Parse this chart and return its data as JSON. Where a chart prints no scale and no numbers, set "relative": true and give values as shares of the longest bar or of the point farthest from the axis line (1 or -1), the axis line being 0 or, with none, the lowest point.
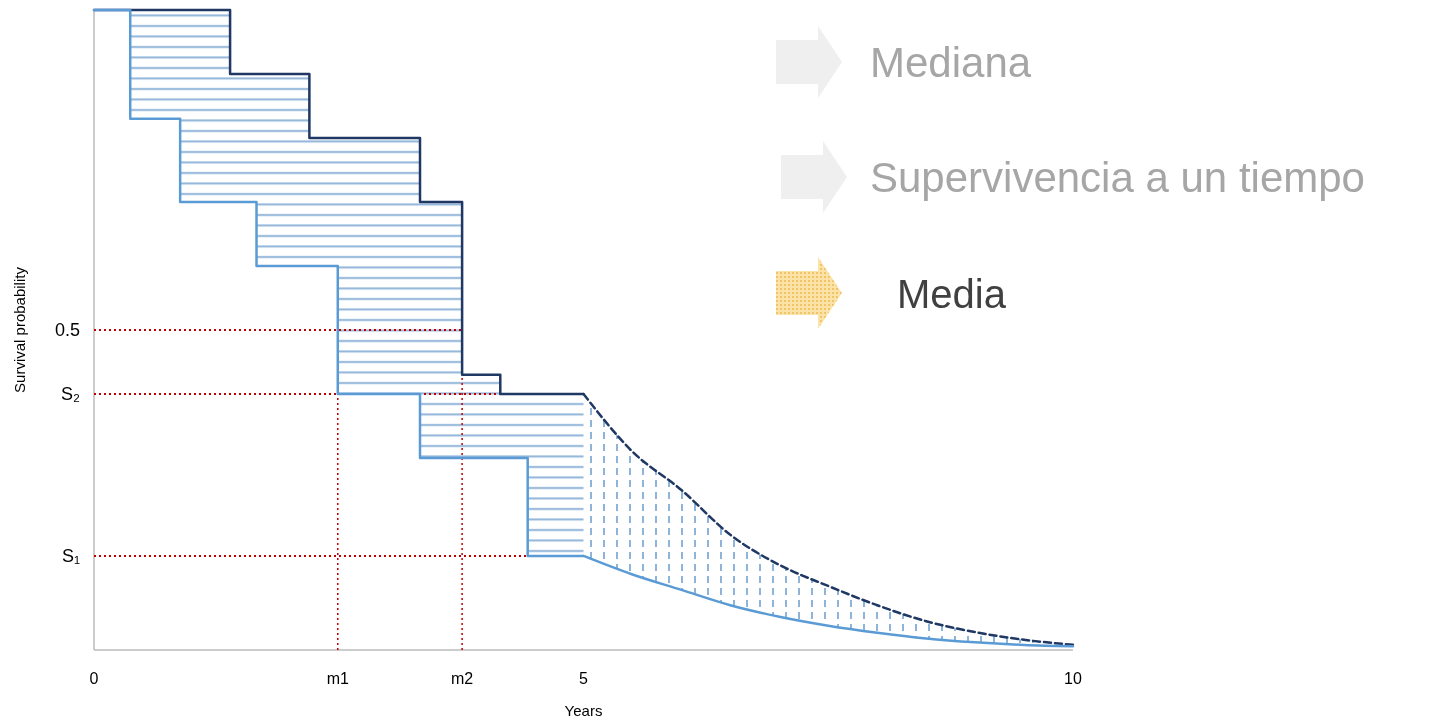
{
  "chart_data": {
    "type": "step",
    "relative": true,
    "xlabel": "Years",
    "ylabel": "Survival probability",
    "xlim": [
      0,
      10
    ],
    "xticks": [
      0,
      {
        "value": 2.49,
        "label": "m1"
      },
      {
        "value": 3.76,
        "label": "m2"
      },
      5,
      10
    ],
    "series": [
      {
        "type": "step",
        "color": "#1f3864",
        "x": [
          0,
          0.37,
          0.88,
          1.39,
          1.66,
          2.2,
          2.49,
          3.33,
          3.76,
          4.15,
          4.43,
          5
        ],
        "values": [
          1,
          1,
          1,
          0.9,
          0.9,
          0.8,
          0.8,
          0.7,
          0.43,
          0.4,
          0.4,
          0.4
        ],
        "lower": [
          1,
          0.83,
          0.7,
          0.7,
          0.6,
          0.6,
          0.4,
          0.3,
          0.3,
          0.3,
          0.147,
          0.147
        ],
        "upper": [
          1,
          1,
          1,
          0.9,
          0.9,
          0.8,
          0.8,
          0.7,
          0.43,
          0.4,
          0.4,
          0.4
        ]
      },
      {
        "type": "line",
        "color": "#1f3864",
        "line_style": "dashed",
        "x": [
          5,
          5.5,
          6,
          6.5,
          7,
          7.5,
          8,
          8.5,
          9,
          9.5,
          10
        ],
        "values": [
          0.4,
          0.31,
          0.25,
          0.18,
          0.133,
          0.1,
          0.07,
          0.045,
          0.028,
          0.016,
          0.008
        ],
        "lower": [
          0.147,
          0.118,
          0.094,
          0.07,
          0.052,
          0.038,
          0.027,
          0.018,
          0.012,
          0.008,
          0.006
        ],
        "upper": [
          0.4,
          0.31,
          0.25,
          0.18,
          0.133,
          0.1,
          0.07,
          0.045,
          0.028,
          0.016,
          0.008
        ]
      },
      {
        "type": "step",
        "color": "#5b9bd5",
        "x": [
          0,
          0.37,
          0.88,
          1.66,
          2.49,
          3.33,
          4.43,
          5
        ],
        "values": [
          1,
          0.83,
          0.7,
          0.6,
          0.4,
          0.3,
          0.147,
          0.147
        ]
      },
      {
        "type": "line",
        "color": "#5b9bd5",
        "x": [
          5,
          5.5,
          6,
          6.5,
          7,
          7.5,
          8,
          8.5,
          9,
          9.5,
          10
        ],
        "values": [
          0.147,
          0.118,
          0.094,
          0.07,
          0.052,
          0.038,
          0.027,
          0.018,
          0.012,
          0.008,
          0.006
        ]
      }
    ],
    "ref_lines": [
      {
        "axis": "y",
        "value": 0.5,
        "label": "0.5",
        "color": "#c00000",
        "line_style": "dotted"
      },
      {
        "axis": "y",
        "value": 0.4,
        "label": "S₂",
        "color": "#c00000",
        "line_style": "dotted"
      },
      {
        "axis": "y",
        "value": 0.147,
        "label": "S₁",
        "color": "#c00000",
        "line_style": "dotted"
      },
      {
        "axis": "x",
        "value": 2.49,
        "label": null,
        "color": "#c00000",
        "line_style": "dotted"
      },
      {
        "axis": "x",
        "value": 3.76,
        "label": null,
        "color": "#c00000",
        "line_style": "dotted"
      }
    ],
    "annotations": [
      "Mediana",
      "Supervivencia a un tiempo",
      "Media"
    ]
  }
}
